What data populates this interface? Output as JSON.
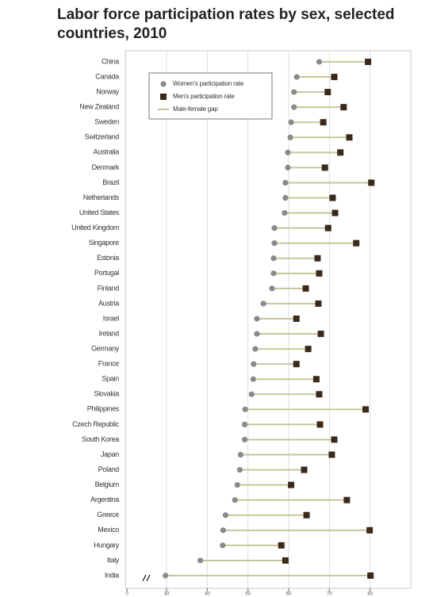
{
  "chart_data": {
    "type": "dot",
    "title_lines": [
      "Labor force participation rates by sex, selected",
      "countries, 2010"
    ],
    "categories": [
      "China",
      "Canada",
      "Norway",
      "New Zealand",
      "Sweden",
      "Switzerland",
      "Australia",
      "Denmark",
      "Brazil",
      "Netherlands",
      "United States",
      "United Kingdom",
      "Singapore",
      "Estonia",
      "Portugal",
      "Finland",
      "Austria",
      "Israel",
      "Ireland",
      "Germany",
      "France",
      "Spain",
      "Slovakia",
      "Philippines",
      "Czech Republic",
      "South Korea",
      "Japan",
      "Poland",
      "Belgium",
      "Argentina",
      "Greece",
      "Mexico",
      "Hungary",
      "Italy",
      "India"
    ],
    "series": [
      {
        "name": "Women's participation rate",
        "color": "#8a8a8a",
        "values": [
          67.5,
          62,
          61.3,
          61.3,
          60.6,
          60.4,
          59.8,
          59.8,
          59.2,
          59.2,
          59,
          56.5,
          56.5,
          56.3,
          56.3,
          55.9,
          53.8,
          52.2,
          52.2,
          51.8,
          51.4,
          51.3,
          50.9,
          49.3,
          49.2,
          49.2,
          48.2,
          48,
          47.4,
          46.8,
          44.5,
          43.9,
          43.8,
          38.3,
          29.2
        ]
      },
      {
        "name": "Men's participation rate",
        "color": "#3b2a1c",
        "values": [
          79.5,
          71.2,
          69.6,
          73.5,
          68.5,
          74.9,
          72.7,
          68.9,
          80.3,
          70.8,
          71.4,
          69.7,
          76.6,
          67.1,
          67.5,
          64.2,
          67.3,
          61.9,
          67.9,
          64.8,
          61.9,
          66.8,
          67.5,
          78.9,
          67.7,
          71.2,
          70.6,
          63.8,
          60.6,
          74.3,
          64.4,
          79.9,
          58.2,
          59.2,
          80.1
        ]
      }
    ],
    "gap_name": "Male-female gap",
    "gap_color": "#c9c59c",
    "xlim": [
      0,
      90
    ],
    "xticks": [
      0,
      30,
      40,
      50,
      60,
      70,
      80
    ],
    "axis_break": [
      0,
      30
    ],
    "grid": true
  }
}
